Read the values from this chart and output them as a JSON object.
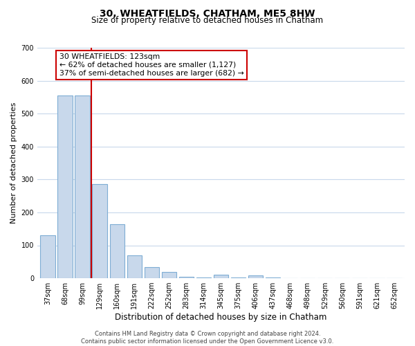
{
  "title": "30, WHEATFIELDS, CHATHAM, ME5 8HW",
  "subtitle": "Size of property relative to detached houses in Chatham",
  "xlabel": "Distribution of detached houses by size in Chatham",
  "ylabel": "Number of detached properties",
  "bar_labels": [
    "37sqm",
    "68sqm",
    "99sqm",
    "129sqm",
    "160sqm",
    "191sqm",
    "222sqm",
    "252sqm",
    "283sqm",
    "314sqm",
    "345sqm",
    "375sqm",
    "406sqm",
    "437sqm",
    "468sqm",
    "498sqm",
    "529sqm",
    "560sqm",
    "591sqm",
    "621sqm",
    "652sqm"
  ],
  "bar_heights": [
    130,
    555,
    555,
    285,
    165,
    70,
    33,
    20,
    5,
    3,
    10,
    3,
    8,
    2,
    1,
    1,
    1,
    0,
    0,
    0,
    0
  ],
  "bar_color": "#c8d8eb",
  "bar_edge_color": "#7eadd4",
  "ylim": [
    0,
    700
  ],
  "yticks": [
    0,
    100,
    200,
    300,
    400,
    500,
    600,
    700
  ],
  "property_line_color": "#cc0000",
  "annotation_title": "30 WHEATFIELDS: 123sqm",
  "annotation_line1": "← 62% of detached houses are smaller (1,127)",
  "annotation_line2": "37% of semi-detached houses are larger (682) →",
  "annotation_box_color": "#ffffff",
  "annotation_box_edge_color": "#cc0000",
  "footer_line1": "Contains HM Land Registry data © Crown copyright and database right 2024.",
  "footer_line2": "Contains public sector information licensed under the Open Government Licence v3.0.",
  "background_color": "#ffffff",
  "grid_color": "#c8d8eb",
  "title_fontsize": 10,
  "subtitle_fontsize": 8.5,
  "xlabel_fontsize": 8.5,
  "ylabel_fontsize": 8,
  "tick_fontsize": 7,
  "annotation_fontsize": 7.8,
  "footer_fontsize": 6
}
